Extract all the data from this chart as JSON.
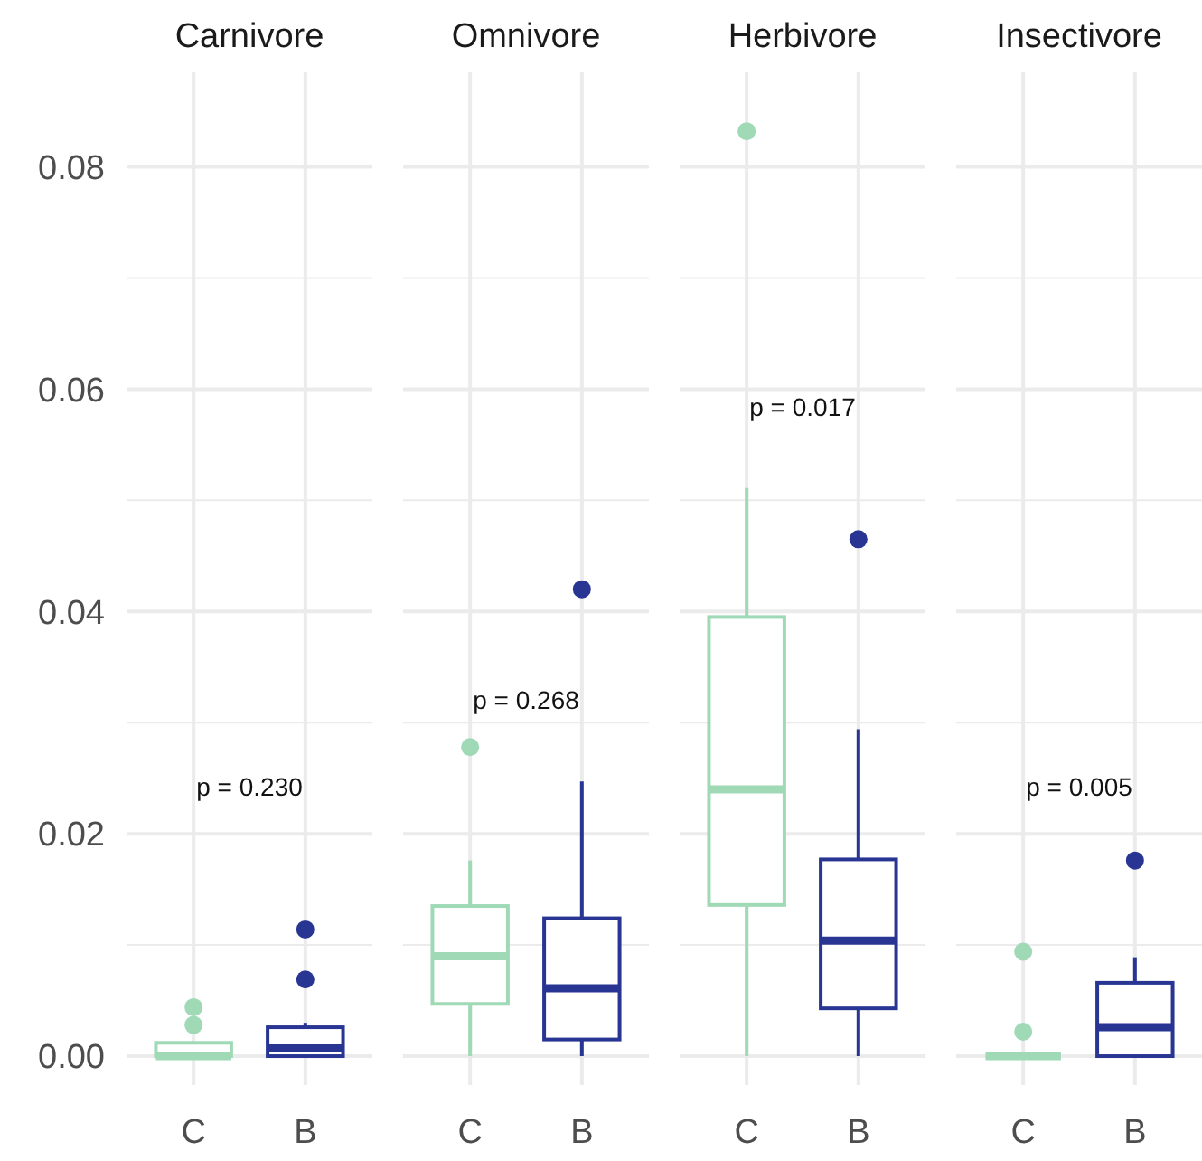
{
  "chart_data": [
    {
      "type": "box",
      "title": "Carnivore",
      "categories": [
        "C",
        "B"
      ],
      "colors": [
        "#9fd9b6",
        "#283593"
      ],
      "boxes": [
        {
          "low": 0,
          "q1": 0,
          "median": 0,
          "q3": 0.0012,
          "high": 0.0012,
          "outliers": [
            0.0028,
            0.0044
          ]
        },
        {
          "low": 0,
          "q1": 0,
          "median": 0.0007,
          "q3": 0.0026,
          "high": 0.003,
          "outliers": [
            0.0069,
            0.0114
          ]
        }
      ],
      "ylim": [
        -0.0026,
        0.0885
      ],
      "yticks": [
        {
          "value": 0,
          "label": "0.00"
        },
        {
          "value": 0.01,
          "label": null
        },
        {
          "value": 0.02,
          "label": "0.02"
        },
        {
          "value": 0.03,
          "label": null
        },
        {
          "value": 0.04,
          "label": "0.04"
        },
        {
          "value": 0.05,
          "label": null
        },
        {
          "value": 0.06,
          "label": "0.06"
        },
        {
          "value": 0.07,
          "label": null
        },
        {
          "value": 0.08,
          "label": "0.08"
        }
      ],
      "grid": true,
      "annotations": [
        "p = 0.230"
      ]
    },
    {
      "type": "box",
      "title": "Omnivore",
      "categories": [
        "C",
        "B"
      ],
      "colors": [
        "#9fd9b6",
        "#283593"
      ],
      "boxes": [
        {
          "low": 0,
          "q1": 0.0047,
          "median": 0.009,
          "q3": 0.0135,
          "high": 0.0176,
          "outliers": [
            0.0278
          ]
        },
        {
          "low": 0,
          "q1": 0.0015,
          "median": 0.0061,
          "q3": 0.0124,
          "high": 0.0247,
          "outliers": [
            0.042
          ]
        }
      ],
      "ylim": [
        -0.0026,
        0.0885
      ],
      "yticks": [
        {
          "value": 0,
          "label": null
        },
        {
          "value": 0.01,
          "label": null
        },
        {
          "value": 0.02,
          "label": null
        },
        {
          "value": 0.03,
          "label": null
        },
        {
          "value": 0.04,
          "label": null
        },
        {
          "value": 0.05,
          "label": null
        },
        {
          "value": 0.06,
          "label": null
        },
        {
          "value": 0.07,
          "label": null
        },
        {
          "value": 0.08,
          "label": null
        }
      ],
      "grid": true,
      "tick_labels": "x",
      "annotations": [
        "p = 0.268"
      ]
    },
    {
      "type": "box",
      "title": "Herbivore",
      "categories": [
        "C",
        "B"
      ],
      "colors": [
        "#9fd9b6",
        "#283593"
      ],
      "boxes": [
        {
          "low": 0,
          "q1": 0.0136,
          "median": 0.024,
          "q3": 0.0395,
          "high": 0.0511,
          "outliers": [
            0.0832
          ]
        },
        {
          "low": 0,
          "q1": 0.0043,
          "median": 0.0104,
          "q3": 0.0177,
          "high": 0.0294,
          "outliers": [
            0.0465
          ]
        }
      ],
      "ylim": [
        -0.0026,
        0.0885
      ],
      "yticks": [
        {
          "value": 0,
          "label": null
        },
        {
          "value": 0.01,
          "label": null
        },
        {
          "value": 0.02,
          "label": null
        },
        {
          "value": 0.03,
          "label": null
        },
        {
          "value": 0.04,
          "label": null
        },
        {
          "value": 0.05,
          "label": null
        },
        {
          "value": 0.06,
          "label": null
        },
        {
          "value": 0.07,
          "label": null
        },
        {
          "value": 0.08,
          "label": null
        }
      ],
      "grid": true,
      "tick_labels": "x",
      "annotations": [
        "p = 0.017"
      ]
    },
    {
      "type": "box",
      "title": "Insectivore",
      "categories": [
        "C",
        "B"
      ],
      "colors": [
        "#9fd9b6",
        "#283593"
      ],
      "boxes": [
        {
          "low": 0,
          "q1": 0,
          "median": 0,
          "q3": 0,
          "high": 0,
          "outliers": [
            0.0022,
            0.0094
          ]
        },
        {
          "low": 0,
          "q1": 0,
          "median": 0.0026,
          "q3": 0.0066,
          "high": 0.0089,
          "outliers": [
            0.0176
          ]
        }
      ],
      "ylim": [
        -0.0026,
        0.0885
      ],
      "yticks": [
        {
          "value": 0,
          "label": null
        },
        {
          "value": 0.01,
          "label": null
        },
        {
          "value": 0.02,
          "label": null
        },
        {
          "value": 0.03,
          "label": null
        },
        {
          "value": 0.04,
          "label": null
        },
        {
          "value": 0.05,
          "label": null
        },
        {
          "value": 0.06,
          "label": null
        },
        {
          "value": 0.07,
          "label": null
        },
        {
          "value": 0.08,
          "label": null
        }
      ],
      "grid": true,
      "tick_labels": "x",
      "annotations": [
        "p = 0.005"
      ]
    }
  ]
}
